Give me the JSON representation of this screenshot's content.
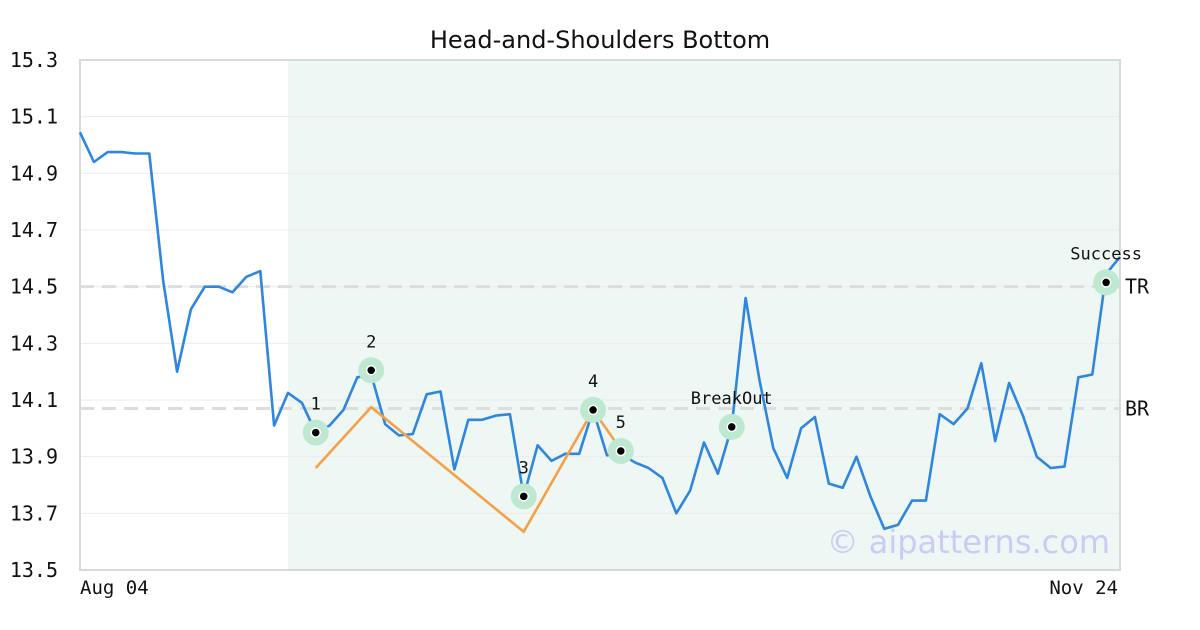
{
  "chart_data": {
    "type": "line",
    "title": "Head-and-Shoulders Bottom",
    "ylim": [
      13.5,
      15.3
    ],
    "yticks": [
      "15.3",
      "15.1",
      "14.9",
      "14.7",
      "14.5",
      "14.3",
      "14.1",
      "13.9",
      "13.7",
      "13.5"
    ],
    "ytick_values": [
      15.3,
      15.1,
      14.9,
      14.7,
      14.5,
      14.3,
      14.1,
      13.9,
      13.7,
      13.5
    ],
    "x_labels": {
      "start": "Aug 04",
      "end": "Nov 24"
    },
    "grid": true,
    "colors": {
      "price_line": "#2e86de",
      "pattern_line": "#f5a046",
      "highlight_band": "#eef7f3",
      "reference_line": "#dddddd",
      "marker_halo": "#bfe8d2",
      "watermark": "#c9cdf5"
    },
    "price": [
      15.045,
      14.94,
      14.975,
      14.975,
      14.97,
      14.97,
      14.52,
      14.2,
      14.42,
      14.5,
      14.5,
      14.48,
      14.535,
      14.555,
      14.01,
      14.125,
      14.09,
      13.985,
      14.01,
      14.065,
      14.18,
      14.19,
      14.015,
      13.975,
      13.98,
      14.12,
      14.13,
      13.855,
      14.03,
      14.03,
      14.045,
      14.05,
      13.76,
      13.94,
      13.885,
      13.91,
      13.91,
      14.065,
      13.905,
      13.91,
      13.88,
      13.86,
      13.825,
      13.7,
      13.78,
      13.95,
      13.84,
      14.005,
      14.46,
      14.17,
      13.93,
      13.825,
      14.0,
      14.04,
      13.805,
      13.79,
      13.9,
      13.76,
      13.645,
      13.66,
      13.745,
      13.745,
      14.05,
      14.015,
      14.07,
      14.23,
      13.955,
      14.16,
      14.045,
      13.9,
      13.86,
      13.865,
      14.18,
      14.19,
      14.545,
      14.605
    ],
    "highlight_range": [
      15,
      75
    ],
    "pattern_line": [
      [
        17,
        13.86
      ],
      [
        21,
        14.075
      ],
      [
        32,
        13.635
      ],
      [
        37,
        14.065
      ],
      [
        39,
        13.925
      ]
    ],
    "points": [
      {
        "label": "1",
        "index": 17,
        "value": 13.985
      },
      {
        "label": "2",
        "index": 21,
        "value": 14.205
      },
      {
        "label": "3",
        "index": 32,
        "value": 13.76
      },
      {
        "label": "4",
        "index": 37,
        "value": 14.065
      },
      {
        "label": "5",
        "index": 39,
        "value": 13.92
      },
      {
        "label": "BreakOut",
        "index": 47,
        "value": 14.005
      },
      {
        "label": "Success",
        "index": 74,
        "value": 14.515
      }
    ],
    "reference_lines": [
      {
        "label": "TR",
        "value": 14.5
      },
      {
        "label": "BR",
        "value": 14.07
      }
    ]
  },
  "watermark": "© aipatterns.com"
}
